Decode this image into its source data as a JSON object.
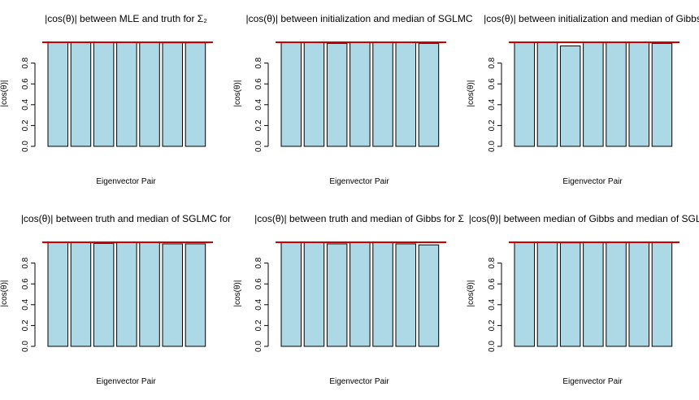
{
  "chart_data": [
    {
      "type": "bar",
      "title": "|cos(θ)| between MLE and truth for Σ₂",
      "xlabel": "Eigenvector Pair",
      "ylabel": "|cos(θ)|",
      "values": [
        1.0,
        1.0,
        1.0,
        1.0,
        1.0,
        0.995,
        0.995
      ],
      "ylim": [
        0,
        1.0
      ],
      "yticks": [
        "0.0",
        "0.2",
        "0.4",
        "0.6",
        "0.8"
      ],
      "reference_line": 1.0,
      "bar_color": "#add8e6",
      "line_color": "#cc0000"
    },
    {
      "type": "bar",
      "title": "|cos(θ)| between initialization and median of SGLMC",
      "xlabel": "Eigenvector Pair",
      "ylabel": "|cos(θ)|",
      "values": [
        1.0,
        1.0,
        0.99,
        1.0,
        1.0,
        1.0,
        0.99
      ],
      "ylim": [
        0,
        1.0
      ],
      "yticks": [
        "0.0",
        "0.2",
        "0.4",
        "0.6",
        "0.8"
      ],
      "reference_line": 1.0,
      "bar_color": "#add8e6",
      "line_color": "#cc0000"
    },
    {
      "type": "bar",
      "title": "|cos(θ)| between initialization and median of Gibbs",
      "xlabel": "Eigenvector Pair",
      "ylabel": "|cos(θ)|",
      "values": [
        1.0,
        1.0,
        0.965,
        1.0,
        1.0,
        1.0,
        0.99
      ],
      "ylim": [
        0,
        1.0
      ],
      "yticks": [
        "0.0",
        "0.2",
        "0.4",
        "0.6",
        "0.8"
      ],
      "reference_line": 1.0,
      "bar_color": "#add8e6",
      "line_color": "#cc0000"
    },
    {
      "type": "bar",
      "title": "|cos(θ)| between truth and median of SGLMC for",
      "xlabel": "Eigenvector Pair",
      "ylabel": "|cos(θ)|",
      "values": [
        1.0,
        1.0,
        0.99,
        1.0,
        1.0,
        0.985,
        0.985
      ],
      "ylim": [
        0,
        1.0
      ],
      "yticks": [
        "0.0",
        "0.2",
        "0.4",
        "0.6",
        "0.8"
      ],
      "reference_line": 1.0,
      "bar_color": "#add8e6",
      "line_color": "#cc0000"
    },
    {
      "type": "bar",
      "title": "|cos(θ)| between truth and median of Gibbs for Σ",
      "xlabel": "Eigenvector Pair",
      "ylabel": "|cos(θ)|",
      "values": [
        1.0,
        1.0,
        0.985,
        1.0,
        1.0,
        0.985,
        0.975
      ],
      "ylim": [
        0,
        1.0
      ],
      "yticks": [
        "0.0",
        "0.2",
        "0.4",
        "0.6",
        "0.8"
      ],
      "reference_line": 1.0,
      "bar_color": "#add8e6",
      "line_color": "#cc0000"
    },
    {
      "type": "bar",
      "title": "|cos(θ)| between median of Gibbs and median of SGLMC",
      "xlabel": "Eigenvector Pair",
      "ylabel": "|cos(θ)|",
      "values": [
        1.0,
        1.0,
        0.995,
        1.0,
        1.0,
        1.0,
        1.0
      ],
      "ylim": [
        0,
        1.0
      ],
      "yticks": [
        "0.0",
        "0.2",
        "0.4",
        "0.6",
        "0.8"
      ],
      "reference_line": 1.0,
      "bar_color": "#add8e6",
      "line_color": "#cc0000"
    }
  ]
}
